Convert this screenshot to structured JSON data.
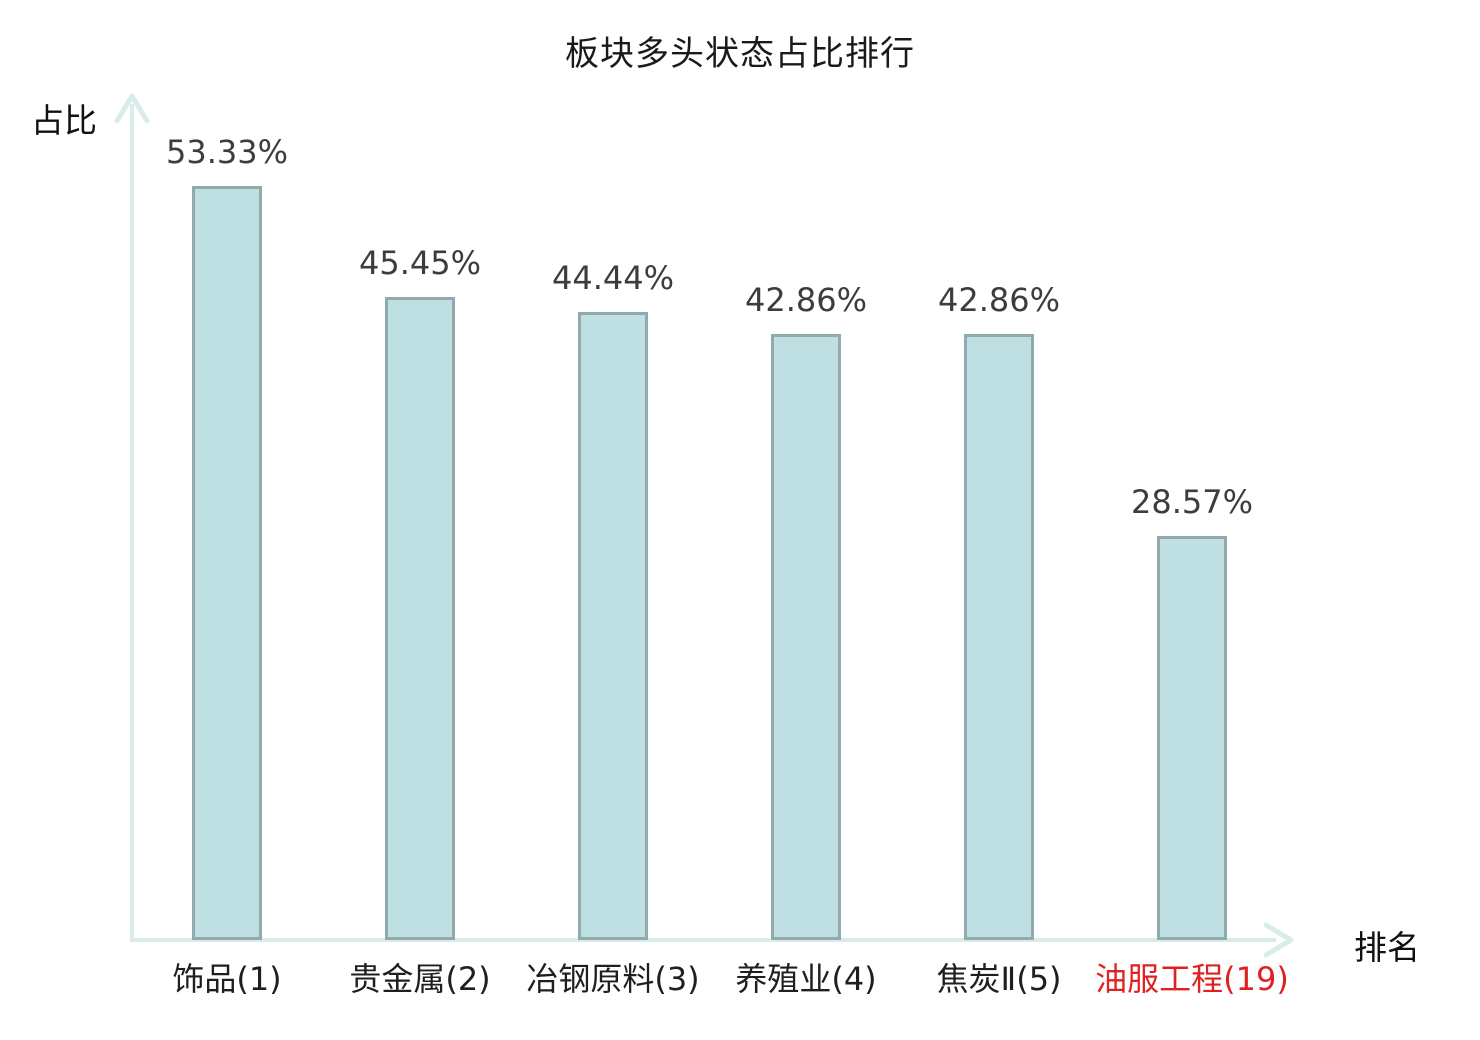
{
  "title": "板块多头状态占比排行",
  "axes": {
    "y_label": "占比",
    "x_label": "排名"
  },
  "colors": {
    "bar_fill": "#bfe0e2",
    "bar_border": "#92a9ad",
    "axis": "#d9ecea",
    "title_text": "#1a1a1a",
    "value_label_text": "#3d3d3d",
    "category_label_text": "#1f1f1f",
    "highlight_text": "#e02121",
    "background": "#ffffff"
  },
  "chart_data": {
    "type": "bar",
    "title": "板块多头状态占比排行",
    "xlabel": "排名",
    "ylabel": "占比",
    "categories": [
      "饰品(1)",
      "贵金属(2)",
      "冶钢原料(3)",
      "养殖业(4)",
      "焦炭Ⅱ(5)",
      "油服工程(19)"
    ],
    "values": [
      53.33,
      45.45,
      44.44,
      42.86,
      42.86,
      28.57
    ],
    "value_labels": [
      "53.33%",
      "45.45%",
      "44.44%",
      "42.86%",
      "42.86%",
      "28.57%"
    ],
    "highlighted_category_index": 5,
    "ylim": [
      0,
      60
    ],
    "grid": false,
    "legend": null,
    "axis_arrows": true
  }
}
